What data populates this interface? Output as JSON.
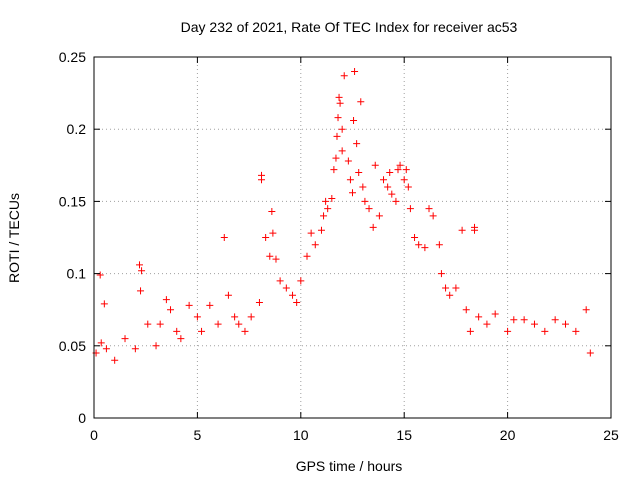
{
  "chart_data": {
    "type": "scatter",
    "title": "Day 232 of 2021, Rate Of TEC Index for receiver ac53",
    "xlabel": "GPS time / hours",
    "ylabel": "ROTI / TECUs",
    "xlim": [
      0,
      25
    ],
    "ylim": [
      0,
      0.25
    ],
    "x_ticks": [
      0,
      5,
      10,
      15,
      20,
      25
    ],
    "x_tick_labels": [
      "0",
      "5",
      "10",
      "15",
      "20",
      "25"
    ],
    "y_ticks": [
      0,
      0.05,
      0.1,
      0.15,
      0.2,
      0.25
    ],
    "y_tick_labels": [
      "0",
      "0.05",
      "0.1",
      "0.15",
      "0.2",
      "0.25"
    ],
    "grid": true,
    "legend": "none",
    "marker": "plus",
    "marker_color": "#ff0000",
    "series": [
      {
        "points": [
          [
            0.1,
            0.045
          ],
          [
            0.3,
            0.099
          ],
          [
            0.35,
            0.052
          ],
          [
            0.5,
            0.079
          ],
          [
            0.6,
            0.048
          ],
          [
            1.0,
            0.04
          ],
          [
            1.5,
            0.055
          ],
          [
            2.0,
            0.048
          ],
          [
            2.2,
            0.106
          ],
          [
            2.3,
            0.102
          ],
          [
            2.25,
            0.088
          ],
          [
            2.6,
            0.065
          ],
          [
            3.0,
            0.05
          ],
          [
            3.2,
            0.065
          ],
          [
            3.5,
            0.082
          ],
          [
            3.7,
            0.075
          ],
          [
            4.0,
            0.06
          ],
          [
            4.2,
            0.055
          ],
          [
            4.6,
            0.078
          ],
          [
            5.0,
            0.07
          ],
          [
            5.2,
            0.06
          ],
          [
            5.6,
            0.078
          ],
          [
            6.0,
            0.065
          ],
          [
            6.3,
            0.125
          ],
          [
            6.5,
            0.085
          ],
          [
            6.8,
            0.07
          ],
          [
            7.0,
            0.065
          ],
          [
            7.3,
            0.06
          ],
          [
            7.6,
            0.07
          ],
          [
            8.0,
            0.08
          ],
          [
            8.1,
            0.168
          ],
          [
            8.1,
            0.165
          ],
          [
            8.3,
            0.125
          ],
          [
            8.5,
            0.112
          ],
          [
            8.6,
            0.143
          ],
          [
            8.65,
            0.128
          ],
          [
            8.8,
            0.11
          ],
          [
            9.0,
            0.095
          ],
          [
            9.3,
            0.09
          ],
          [
            9.6,
            0.085
          ],
          [
            9.8,
            0.08
          ],
          [
            10.0,
            0.095
          ],
          [
            10.3,
            0.112
          ],
          [
            10.5,
            0.128
          ],
          [
            10.7,
            0.12
          ],
          [
            11.0,
            0.13
          ],
          [
            11.1,
            0.14
          ],
          [
            11.2,
            0.15
          ],
          [
            11.3,
            0.145
          ],
          [
            11.5,
            0.152
          ],
          [
            11.6,
            0.172
          ],
          [
            11.7,
            0.18
          ],
          [
            11.75,
            0.195
          ],
          [
            11.8,
            0.208
          ],
          [
            11.85,
            0.222
          ],
          [
            11.9,
            0.218
          ],
          [
            12.0,
            0.2
          ],
          [
            12.0,
            0.185
          ],
          [
            12.1,
            0.237
          ],
          [
            12.3,
            0.178
          ],
          [
            12.4,
            0.165
          ],
          [
            12.5,
            0.156
          ],
          [
            12.55,
            0.206
          ],
          [
            12.6,
            0.24
          ],
          [
            12.7,
            0.19
          ],
          [
            12.8,
            0.17
          ],
          [
            12.9,
            0.219
          ],
          [
            13.0,
            0.16
          ],
          [
            13.1,
            0.15
          ],
          [
            13.3,
            0.145
          ],
          [
            13.5,
            0.132
          ],
          [
            13.6,
            0.175
          ],
          [
            13.8,
            0.14
          ],
          [
            14.0,
            0.165
          ],
          [
            14.2,
            0.16
          ],
          [
            14.3,
            0.17
          ],
          [
            14.4,
            0.155
          ],
          [
            14.6,
            0.15
          ],
          [
            14.7,
            0.172
          ],
          [
            14.8,
            0.175
          ],
          [
            15.0,
            0.165
          ],
          [
            15.1,
            0.172
          ],
          [
            15.2,
            0.16
          ],
          [
            15.3,
            0.145
          ],
          [
            15.5,
            0.125
          ],
          [
            15.7,
            0.12
          ],
          [
            16.0,
            0.118
          ],
          [
            16.2,
            0.145
          ],
          [
            16.4,
            0.14
          ],
          [
            16.7,
            0.12
          ],
          [
            16.8,
            0.1
          ],
          [
            17.0,
            0.09
          ],
          [
            17.2,
            0.085
          ],
          [
            17.5,
            0.09
          ],
          [
            17.8,
            0.13
          ],
          [
            18.0,
            0.075
          ],
          [
            18.2,
            0.06
          ],
          [
            18.4,
            0.13
          ],
          [
            18.4,
            0.132
          ],
          [
            18.6,
            0.07
          ],
          [
            19.0,
            0.065
          ],
          [
            19.4,
            0.072
          ],
          [
            20.0,
            0.06
          ],
          [
            20.3,
            0.068
          ],
          [
            20.8,
            0.068
          ],
          [
            21.3,
            0.065
          ],
          [
            21.8,
            0.06
          ],
          [
            22.3,
            0.068
          ],
          [
            22.8,
            0.065
          ],
          [
            23.3,
            0.06
          ],
          [
            23.8,
            0.075
          ],
          [
            24.0,
            0.045
          ]
        ]
      }
    ]
  }
}
